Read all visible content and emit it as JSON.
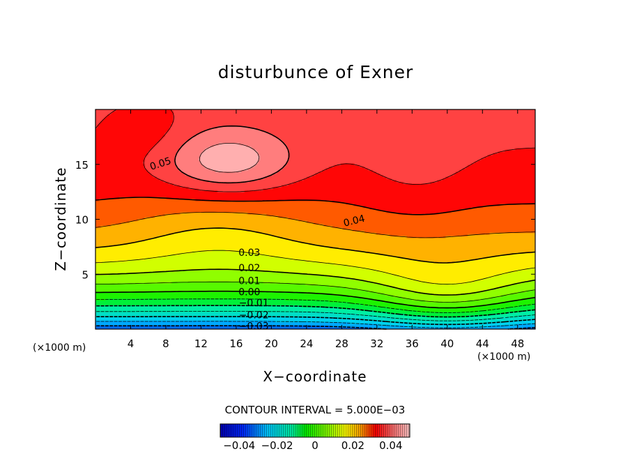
{
  "chart_data": {
    "type": "heatmap",
    "title": "disturbunce of Exner",
    "xlabel": "X−coordinate",
    "ylabel": "Z−coordinate",
    "x_unit_left": "(×1000 m)",
    "x_unit_right": "(×1000 m)",
    "xlim": [
      0,
      50
    ],
    "ylim": [
      0,
      20
    ],
    "x_ticks": [
      4,
      8,
      12,
      16,
      20,
      24,
      28,
      32,
      36,
      40,
      44,
      48
    ],
    "x_tick_labels": [
      "4",
      "8",
      "12",
      "16",
      "20",
      "24",
      "28",
      "32",
      "36",
      "40",
      "44",
      "48"
    ],
    "y_ticks": [
      5,
      10,
      15
    ],
    "y_tick_labels": [
      "5",
      "10",
      "15"
    ],
    "contour_interval_text": "CONTOUR INTERVAL = 5.000E−03",
    "contour_interval": 0.005,
    "contour_labels": [
      {
        "text": "0.05",
        "x": 7.5,
        "z": 15.1
      },
      {
        "text": "0.04",
        "x": 29.5,
        "z": 9.9
      },
      {
        "text": "0.03",
        "x": 17.5,
        "z": 7.0
      },
      {
        "text": "0.02",
        "x": 17.5,
        "z": 5.6
      },
      {
        "text": "0.01",
        "x": 17.5,
        "z": 4.4
      },
      {
        "text": "0.00",
        "x": 17.5,
        "z": 3.4
      },
      {
        "text": "−0.01",
        "x": 18.0,
        "z": 2.4
      },
      {
        "text": "−0.02",
        "x": 18.0,
        "z": 1.3
      },
      {
        "text": "−0.03",
        "x": 18.0,
        "z": 0.3
      }
    ],
    "value_range": [
      -0.05,
      0.05
    ],
    "colorbar": {
      "ticks": [
        -0.04,
        -0.02,
        0,
        0.02,
        0.04
      ],
      "tick_labels": [
        "−0.04",
        "−0.02",
        "0",
        "0.02",
        "0.04"
      ]
    },
    "field_description": [
      {
        "region": "near surface (z≈0)",
        "approx_value": -0.035
      },
      {
        "region": "z≈3",
        "approx_value": 0.0
      },
      {
        "region": "z≈7",
        "approx_value": 0.03
      },
      {
        "region": "upper left maximum x≈8–22, z≈12.5–17.5",
        "approx_value": 0.052
      },
      {
        "region": "upper right x≈36–48, z≈10–19",
        "approx_value": 0.042
      }
    ],
    "colors": {
      "min": "#0000b4",
      "low": "#00c8ff",
      "mid": "#00f000",
      "high": "#ffff00",
      "max": "#ff0000",
      "peak_fill": "#ffffff"
    }
  }
}
